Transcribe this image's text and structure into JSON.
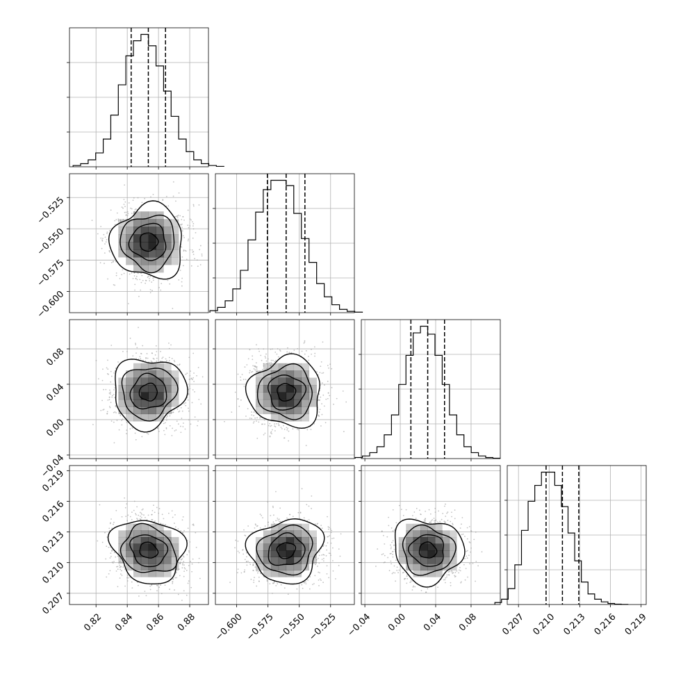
{
  "chart_data": {
    "type": "corner",
    "grid": true,
    "colors": {
      "hist": "#000000",
      "points": "#9a9a9a",
      "density": "#000000",
      "grid": "#b0b0b0"
    },
    "params": [
      {
        "name": "",
        "range": [
          0.803,
          0.892
        ],
        "mean": 0.8536,
        "sigma": 0.0115,
        "quantiles": [
          0.8425,
          0.8535,
          0.8645
        ],
        "ticks": [
          0.82,
          0.84,
          0.86,
          0.88
        ],
        "tick_labels": [
          "0.82",
          "0.84",
          "0.86",
          "0.88"
        ]
      },
      {
        "name": "",
        "range": [
          -0.617,
          -0.506
        ],
        "mean": -0.5605,
        "sigma": 0.0145,
        "quantiles": [
          -0.5755,
          -0.5605,
          -0.5455
        ],
        "ticks": [
          -0.6,
          -0.575,
          -0.55,
          -0.525
        ],
        "tick_labels": [
          "−0.600",
          "−0.575",
          "−0.550",
          "−0.525"
        ]
      },
      {
        "name": "",
        "range": [
          -0.044,
          0.113
        ],
        "mean": 0.031,
        "sigma": 0.0195,
        "quantiles": [
          0.012,
          0.031,
          0.05
        ],
        "ticks": [
          -0.04,
          0.0,
          0.04,
          0.08
        ],
        "tick_labels": [
          "−0.04",
          "0.00",
          "0.04",
          "0.08"
        ]
      },
      {
        "name": "",
        "range": [
          0.2059,
          0.2195
        ],
        "mean": 0.2112,
        "sigma": 0.00155,
        "quantiles": [
          0.2097,
          0.2113,
          0.2129
        ],
        "ticks": [
          0.207,
          0.21,
          0.213,
          0.216,
          0.219
        ],
        "tick_labels": [
          "0.207",
          "0.210",
          "0.213",
          "0.216",
          "0.219"
        ]
      }
    ],
    "histograms": [
      {
        "param": 0,
        "bins": 20,
        "counts": [
          10,
          25,
          55,
          110,
          220,
          410,
          650,
          880,
          1000,
          1050,
          960,
          800,
          600,
          400,
          220,
          120,
          55,
          25,
          10,
          3
        ]
      },
      {
        "param": 1,
        "bins": 20,
        "counts": [
          15,
          40,
          90,
          180,
          320,
          550,
          760,
          930,
          1000,
          1000,
          960,
          750,
          560,
          380,
          220,
          120,
          60,
          25,
          10,
          4
        ]
      },
      {
        "param": 2,
        "bins": 20,
        "counts": [
          8,
          20,
          45,
          90,
          180,
          330,
          560,
          780,
          950,
          1000,
          940,
          780,
          560,
          330,
          180,
          90,
          45,
          20,
          8,
          3
        ]
      },
      {
        "param": 3,
        "bins": 20,
        "counts": [
          15,
          40,
          120,
          300,
          560,
          780,
          900,
          1000,
          1000,
          900,
          740,
          540,
          330,
          170,
          80,
          40,
          20,
          8,
          3,
          1
        ]
      }
    ],
    "pairs": [
      {
        "x": 0,
        "y": 1,
        "correlation": 0.0
      },
      {
        "x": 0,
        "y": 2,
        "correlation": 0.05
      },
      {
        "x": 1,
        "y": 2,
        "correlation": 0.0
      },
      {
        "x": 0,
        "y": 3,
        "correlation": -0.15
      },
      {
        "x": 1,
        "y": 3,
        "correlation": 0.1
      },
      {
        "x": 2,
        "y": 3,
        "correlation": -0.05
      }
    ]
  }
}
